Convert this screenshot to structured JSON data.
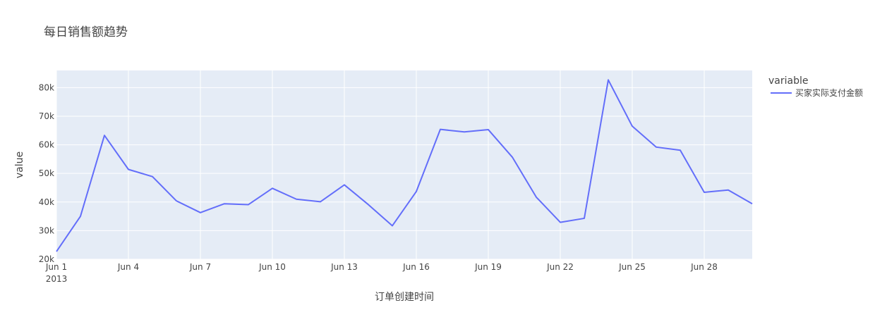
{
  "chart_data": {
    "type": "line",
    "title": "每日销售额趋势",
    "xlabel": "订单创建时间",
    "ylabel": "value",
    "x_start": "2013-06-01",
    "x_end": "2013-06-30",
    "x_ticks": [
      {
        "date": "2013-06-01",
        "label": "Jun 1",
        "sublabel": "2013"
      },
      {
        "date": "2013-06-04",
        "label": "Jun 4"
      },
      {
        "date": "2013-06-07",
        "label": "Jun 7"
      },
      {
        "date": "2013-06-10",
        "label": "Jun 10"
      },
      {
        "date": "2013-06-13",
        "label": "Jun 13"
      },
      {
        "date": "2013-06-16",
        "label": "Jun 16"
      },
      {
        "date": "2013-06-19",
        "label": "Jun 19"
      },
      {
        "date": "2013-06-22",
        "label": "Jun 22"
      },
      {
        "date": "2013-06-25",
        "label": "Jun 25"
      },
      {
        "date": "2013-06-28",
        "label": "Jun 28"
      }
    ],
    "ylim": [
      20000,
      86000
    ],
    "y_ticks": [
      {
        "value": 20000,
        "label": "20k"
      },
      {
        "value": 30000,
        "label": "30k"
      },
      {
        "value": 40000,
        "label": "40k"
      },
      {
        "value": 50000,
        "label": "50k"
      },
      {
        "value": 60000,
        "label": "60k"
      },
      {
        "value": 70000,
        "label": "70k"
      },
      {
        "value": 80000,
        "label": "80k"
      }
    ],
    "grid": true,
    "legend": {
      "title": "variable",
      "placement": "top-right"
    },
    "x": [
      "2013-06-01",
      "2013-06-02",
      "2013-06-03",
      "2013-06-04",
      "2013-06-05",
      "2013-06-06",
      "2013-06-07",
      "2013-06-08",
      "2013-06-09",
      "2013-06-10",
      "2013-06-11",
      "2013-06-12",
      "2013-06-13",
      "2013-06-14",
      "2013-06-15",
      "2013-06-16",
      "2013-06-17",
      "2013-06-18",
      "2013-06-19",
      "2013-06-20",
      "2013-06-21",
      "2013-06-22",
      "2013-06-23",
      "2013-06-24",
      "2013-06-25",
      "2013-06-26",
      "2013-06-27",
      "2013-06-28",
      "2013-06-29",
      "2013-06-30"
    ],
    "series": [
      {
        "name": "买家实际支付金额",
        "color": "#636efa",
        "values": [
          22700,
          35000,
          63300,
          51400,
          48900,
          40400,
          36300,
          39400,
          39100,
          44800,
          41000,
          40100,
          46000,
          39100,
          31700,
          43700,
          65400,
          64500,
          65300,
          55700,
          41700,
          32900,
          34300,
          82700,
          66500,
          59200,
          58100,
          43400,
          44200,
          39400
        ]
      }
    ],
    "colors": {
      "plot_background": "#e5ecf6",
      "grid": "#ffffff",
      "text": "#444444"
    }
  }
}
